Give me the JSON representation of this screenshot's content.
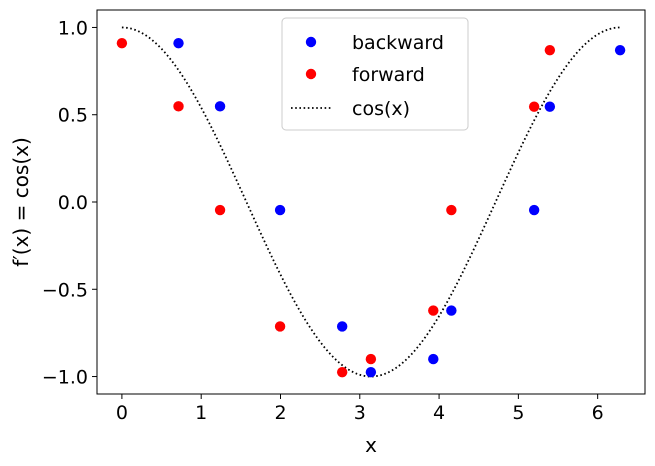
{
  "chart_data": {
    "type": "scatter",
    "xlabel": "x",
    "ylabel": "f′(x) = cos(x)",
    "xlim": [
      -0.314,
      6.597
    ],
    "ylim": [
      -1.1,
      1.1
    ],
    "xticks": [
      0,
      1,
      2,
      3,
      4,
      5,
      6
    ],
    "xtick_labels": [
      "0",
      "1",
      "2",
      "3",
      "4",
      "5",
      "6"
    ],
    "yticks": [
      -1.0,
      -0.5,
      0.0,
      0.5,
      1.0
    ],
    "ytick_labels": [
      "−1.0",
      "−0.5",
      "0.0",
      "0.5",
      "1.0"
    ],
    "grid": false,
    "legend_position": "upper-center",
    "series": [
      {
        "name": "backward",
        "kind": "scatter",
        "color": "#0000ff",
        "x": [
          0.714,
          1.238,
          1.995,
          2.778,
          3.14,
          3.927,
          4.155,
          5.199,
          5.397,
          6.283
        ],
        "y": [
          0.91,
          0.548,
          -0.046,
          -0.713,
          -0.975,
          -0.9,
          -0.622,
          -0.046,
          0.546,
          0.87
        ]
      },
      {
        "name": "forward",
        "kind": "scatter",
        "color": "#ff0000",
        "x": [
          0.0,
          0.714,
          1.238,
          1.995,
          2.778,
          3.14,
          3.927,
          4.155,
          5.199,
          5.397
        ],
        "y": [
          0.91,
          0.548,
          -0.046,
          -0.713,
          -0.975,
          -0.9,
          -0.622,
          -0.046,
          0.546,
          0.87
        ]
      },
      {
        "name": "cos(x)",
        "kind": "line",
        "style": "dotted",
        "color": "#000000",
        "function": "cos",
        "domain": [
          0,
          6.283
        ]
      }
    ]
  }
}
